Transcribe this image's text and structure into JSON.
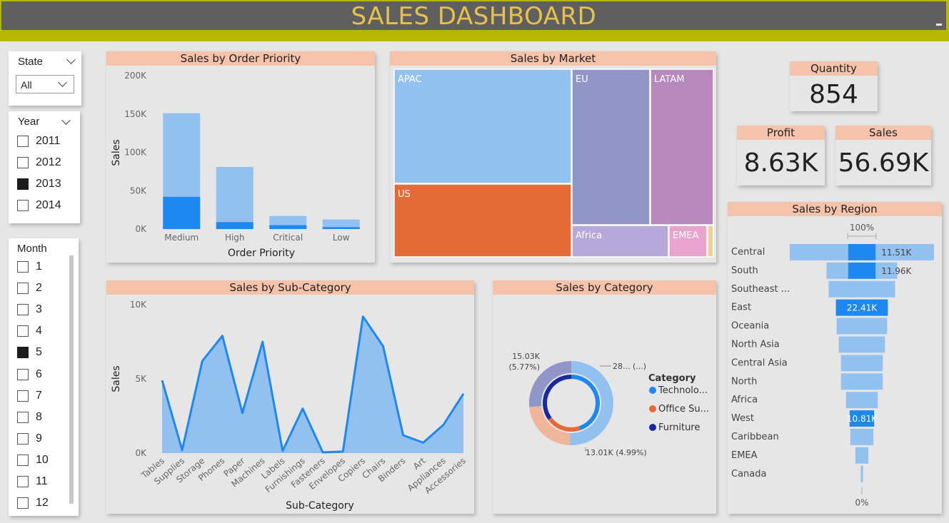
{
  "header": {
    "title": "SALES DASHBOARD"
  },
  "slicers": {
    "state": {
      "title": "State",
      "selected": "All"
    },
    "year": {
      "title": "Year",
      "items": [
        {
          "label": "2011",
          "checked": false
        },
        {
          "label": "2012",
          "checked": false
        },
        {
          "label": "2013",
          "checked": true
        },
        {
          "label": "2014",
          "checked": false
        }
      ]
    },
    "month": {
      "title": "Month",
      "items": [
        {
          "label": "1",
          "checked": false
        },
        {
          "label": "2",
          "checked": false
        },
        {
          "label": "3",
          "checked": false
        },
        {
          "label": "4",
          "checked": false
        },
        {
          "label": "5",
          "checked": true
        },
        {
          "label": "6",
          "checked": false
        },
        {
          "label": "7",
          "checked": false
        },
        {
          "label": "8",
          "checked": false
        },
        {
          "label": "9",
          "checked": false
        },
        {
          "label": "10",
          "checked": false
        },
        {
          "label": "11",
          "checked": false
        },
        {
          "label": "12",
          "checked": false
        }
      ]
    }
  },
  "kpis": {
    "quantity": {
      "label": "Quantity",
      "value": "854"
    },
    "profit": {
      "label": "Profit",
      "value": "8.63K"
    },
    "sales": {
      "label": "Sales",
      "value": "56.69K"
    }
  },
  "colors": {
    "header_bg": "#5f5f5f",
    "title_text": "#e8c14a",
    "accent_bar": "#b6b800",
    "visual_header": "#f5c2aa",
    "light_blue": "#92c1ef",
    "highlight_blue": "#1e88f0",
    "line_blue": "#1e88f0"
  },
  "chart_data": [
    {
      "id": "priority",
      "type": "bar",
      "title": "Sales by Order Priority",
      "xlabel": "Order Priority",
      "ylabel": "Sales",
      "categories": [
        "Medium",
        "High",
        "Critical",
        "Low"
      ],
      "series": [
        {
          "values": [
            151000,
            81000,
            17000,
            12500
          ],
          "color": "#92c1ef"
        },
        {
          "values": [
            42000,
            9000,
            5000,
            2500
          ],
          "color": "#1e88f0"
        }
      ],
      "ylim": [
        0,
        200000
      ],
      "yticks": [
        {
          "value": 200000,
          "label": "200K"
        },
        {
          "value": 150000,
          "label": "150K"
        },
        {
          "value": 100000,
          "label": "100K"
        },
        {
          "value": 50000,
          "label": "50K"
        },
        {
          "value": 0,
          "label": "0K"
        }
      ]
    },
    {
      "id": "market",
      "type": "treemap",
      "title": "Sales by Market",
      "items": [
        {
          "label": "APAC",
          "color": "#92c1ef"
        },
        {
          "label": "US",
          "color": "#e46b35"
        },
        {
          "label": "EU",
          "color": "#9196c8"
        },
        {
          "label": "LATAM",
          "color": "#b688bc"
        },
        {
          "label": "Africa",
          "color": "#b8a8da"
        },
        {
          "label": "EMEA",
          "color": "#e8a4cc"
        },
        {
          "label": "",
          "color": "#e8d294"
        }
      ]
    },
    {
      "id": "subcategory",
      "type": "area",
      "title": "Sales by Sub-Category",
      "xlabel": "Sub-Category",
      "ylabel": "Sales",
      "categories": [
        "Tables",
        "Supplies",
        "Storage",
        "Phones",
        "Paper",
        "Machines",
        "Labels",
        "Furnishings",
        "Fasteners",
        "Envelopes",
        "Copiers",
        "Chairs",
        "Binders",
        "Art",
        "Appliances",
        "Accessories"
      ],
      "values": [
        4900,
        200,
        6200,
        7900,
        2700,
        7500,
        150,
        3000,
        50,
        100,
        9200,
        7200,
        1200,
        700,
        1900,
        4000
      ],
      "ylim": [
        0,
        10000
      ],
      "yticks": [
        {
          "value": 10000,
          "label": "10K"
        },
        {
          "value": 5000,
          "label": "5K"
        },
        {
          "value": 0,
          "label": "0K"
        }
      ]
    },
    {
      "id": "category",
      "type": "pie",
      "title": "Sales by Category",
      "legend_title": "Category",
      "slices": [
        {
          "name": "Technolo...",
          "value": 28.65,
          "color": "#92c1ef",
          "label": "28... (...)"
        },
        {
          "name": "Office Su...",
          "value": 13.01,
          "color": "#f0b69b",
          "label": "13.01K (4.99%)"
        },
        {
          "name": "Furniture",
          "value": 15.03,
          "color": "#9196c8",
          "label": "15.03K (5.77%)"
        }
      ],
      "inner": [
        {
          "value": 0.45,
          "color": "#1e88f0"
        },
        {
          "value": 0.2,
          "color": "#e46b35"
        },
        {
          "value": 0.35,
          "color": "#1a2a9e"
        }
      ],
      "label_furniture_lines": [
        "15.03K",
        "(5.77%)"
      ]
    },
    {
      "id": "region",
      "type": "funnel",
      "title": "Sales by Region",
      "top_label": "100%",
      "bottom_label": "0%",
      "items": [
        {
          "name": "Central",
          "total": 1.0,
          "highlight": 0.19,
          "label": "11.51K"
        },
        {
          "name": "South",
          "total": 0.49,
          "highlight": 0.19,
          "label": "11.96K"
        },
        {
          "name": "Southeast ...",
          "total": 0.46,
          "highlight": 0,
          "label": ""
        },
        {
          "name": "East",
          "total": 0.36,
          "highlight": 0.36,
          "label": "22.41K"
        },
        {
          "name": "Oceania",
          "total": 0.35,
          "highlight": 0,
          "label": ""
        },
        {
          "name": "North Asia",
          "total": 0.32,
          "highlight": 0,
          "label": ""
        },
        {
          "name": "Central Asia",
          "total": 0.29,
          "highlight": 0,
          "label": ""
        },
        {
          "name": "North",
          "total": 0.29,
          "highlight": 0,
          "label": ""
        },
        {
          "name": "Africa",
          "total": 0.22,
          "highlight": 0,
          "label": ""
        },
        {
          "name": "West",
          "total": 0.17,
          "highlight": 0.17,
          "label": "10.81K"
        },
        {
          "name": "Caribbean",
          "total": 0.16,
          "highlight": 0,
          "label": ""
        },
        {
          "name": "EMEA",
          "total": 0.09,
          "highlight": 0,
          "label": ""
        },
        {
          "name": "Canada",
          "total": 0.015,
          "highlight": 0,
          "label": ""
        }
      ]
    }
  ]
}
